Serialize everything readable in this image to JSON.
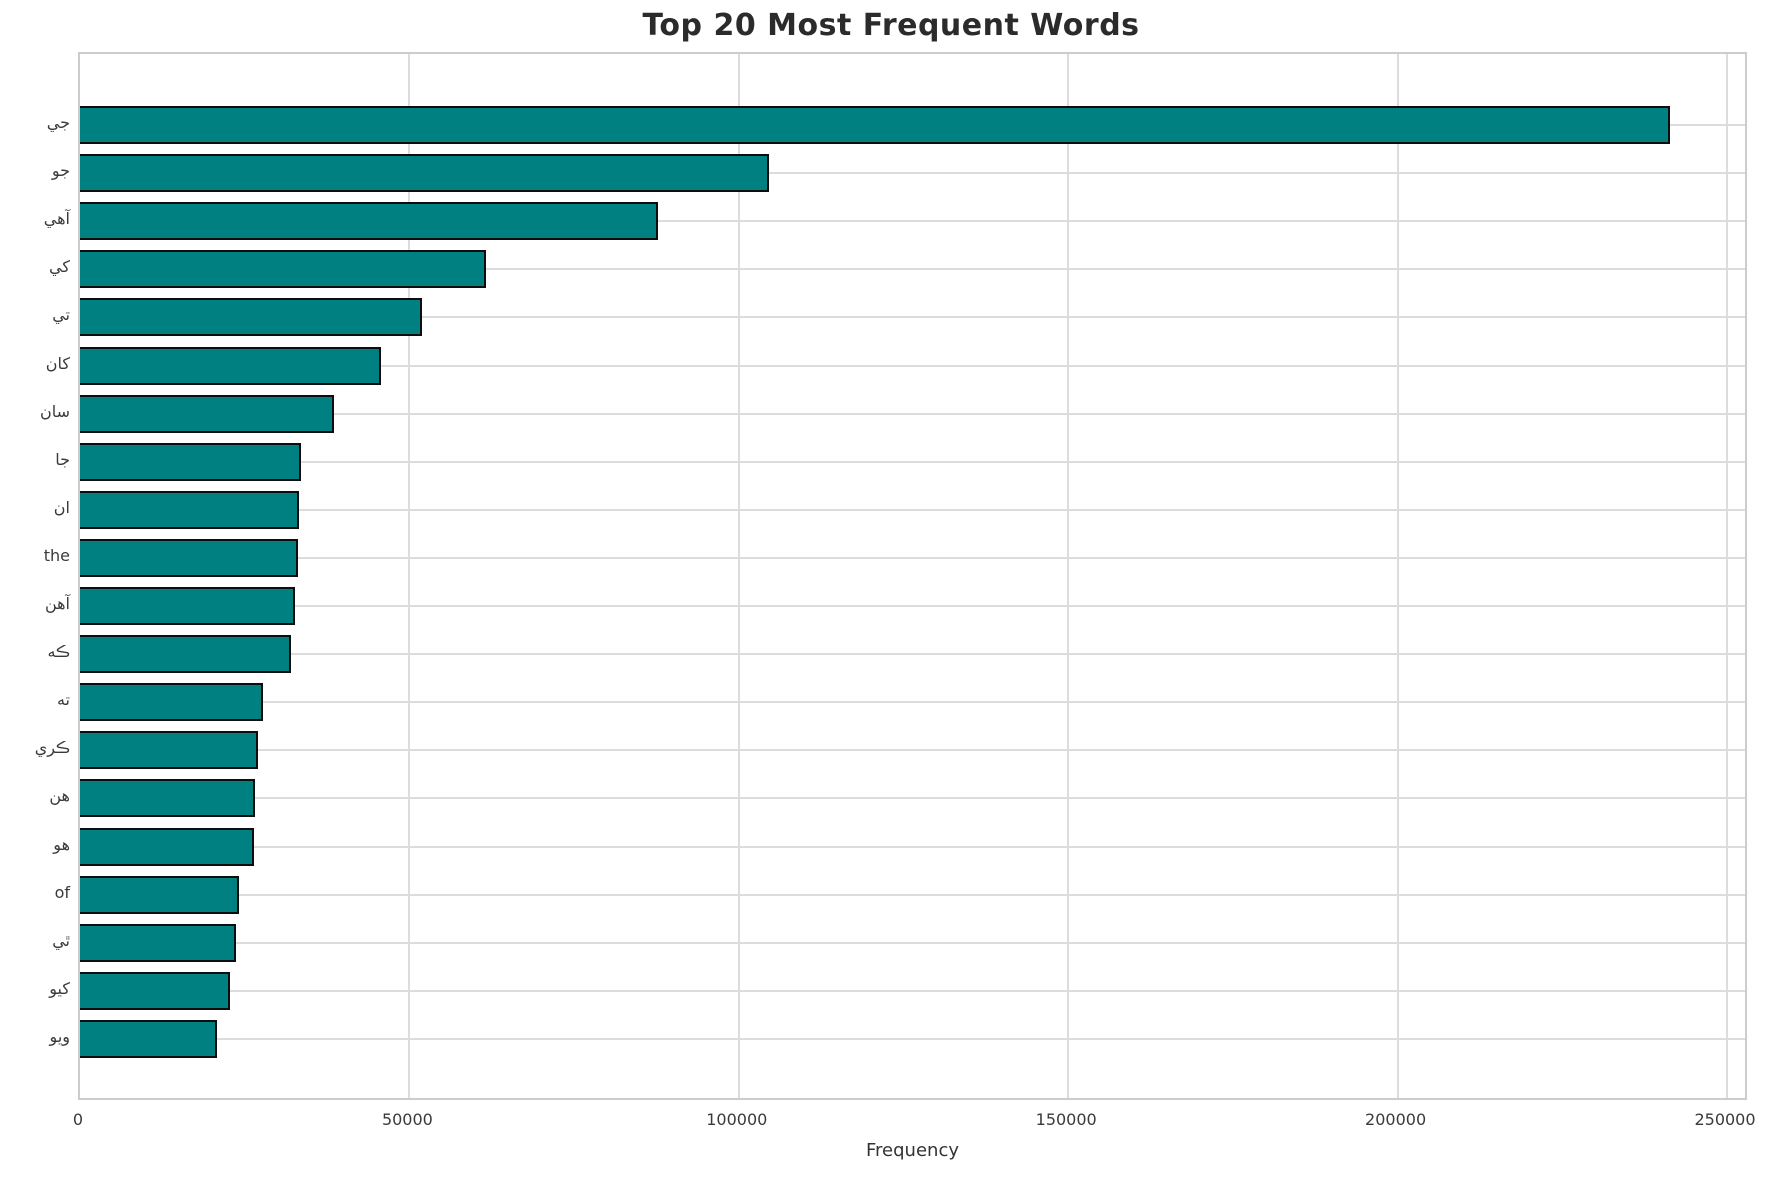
{
  "title": "Top 20 Most Frequent Words",
  "axis": {
    "xlabel": "Frequency",
    "xtick_labels": [
      "0",
      "50000",
      "100000",
      "150000",
      "200000",
      "250000"
    ]
  },
  "chart_data": {
    "type": "bar",
    "orientation": "horizontal",
    "title": "Top 20 Most Frequent Words",
    "xlabel": "Frequency",
    "ylabel": "",
    "categories": [
      "جي",
      "جو",
      "آهي",
      "کي",
      "تي",
      "کان",
      "سان",
      "جا",
      "ان",
      "the",
      "آهن",
      "ڪه",
      "ته",
      "ڪري",
      "هن",
      "هو",
      "of",
      "ٿي",
      "کيو",
      "ويو"
    ],
    "values": [
      241300,
      104600,
      87700,
      61600,
      51900,
      45700,
      38600,
      33500,
      33250,
      33100,
      32650,
      32050,
      27800,
      27000,
      26550,
      26350,
      24100,
      23700,
      22800,
      20800
    ],
    "xticks": [
      0,
      50000,
      100000,
      150000,
      200000,
      250000
    ],
    "xlim": [
      0,
      253300
    ],
    "grid": true,
    "legend_position": "none",
    "colors": {
      "bar_fill": "#008080",
      "bar_edge": "#0d0d0d",
      "gridline": "#dcdcdc",
      "spine": "#cccccc",
      "title_text": "#2b2b2b",
      "tick_text": "#3a3a3a"
    }
  }
}
